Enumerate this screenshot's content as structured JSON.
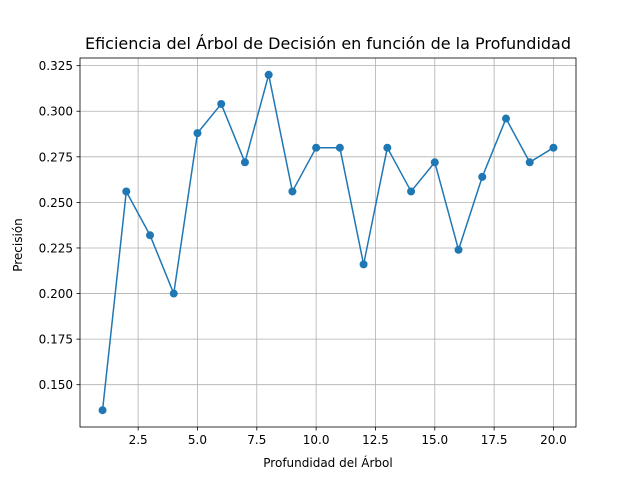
{
  "chart_data": {
    "type": "line",
    "title": "Eficiencia del Árbol de Decisión en función de la Profundidad",
    "xlabel": "Profundidad del Árbol",
    "ylabel": "Precisión",
    "x": [
      1,
      2,
      3,
      4,
      5,
      6,
      7,
      8,
      9,
      10,
      11,
      12,
      13,
      14,
      15,
      16,
      17,
      18,
      19,
      20
    ],
    "series": [
      {
        "values": [
          0.136,
          0.256,
          0.232,
          0.2,
          0.288,
          0.304,
          0.272,
          0.32,
          0.256,
          0.28,
          0.28,
          0.216,
          0.28,
          0.256,
          0.272,
          0.224,
          0.264,
          0.296,
          0.272,
          0.28
        ],
        "color": "#1f77b4",
        "marker": "circle"
      }
    ],
    "xlim": [
      0.05,
      20.95
    ],
    "ylim": [
      0.1268,
      0.3292
    ],
    "xticks": [
      "2.5",
      "5.0",
      "7.5",
      "10.0",
      "12.5",
      "15.0",
      "17.5",
      "20.0"
    ],
    "yticks": [
      "0.150",
      "0.175",
      "0.200",
      "0.225",
      "0.250",
      "0.275",
      "0.300",
      "0.325"
    ],
    "grid": true,
    "legend": false
  }
}
